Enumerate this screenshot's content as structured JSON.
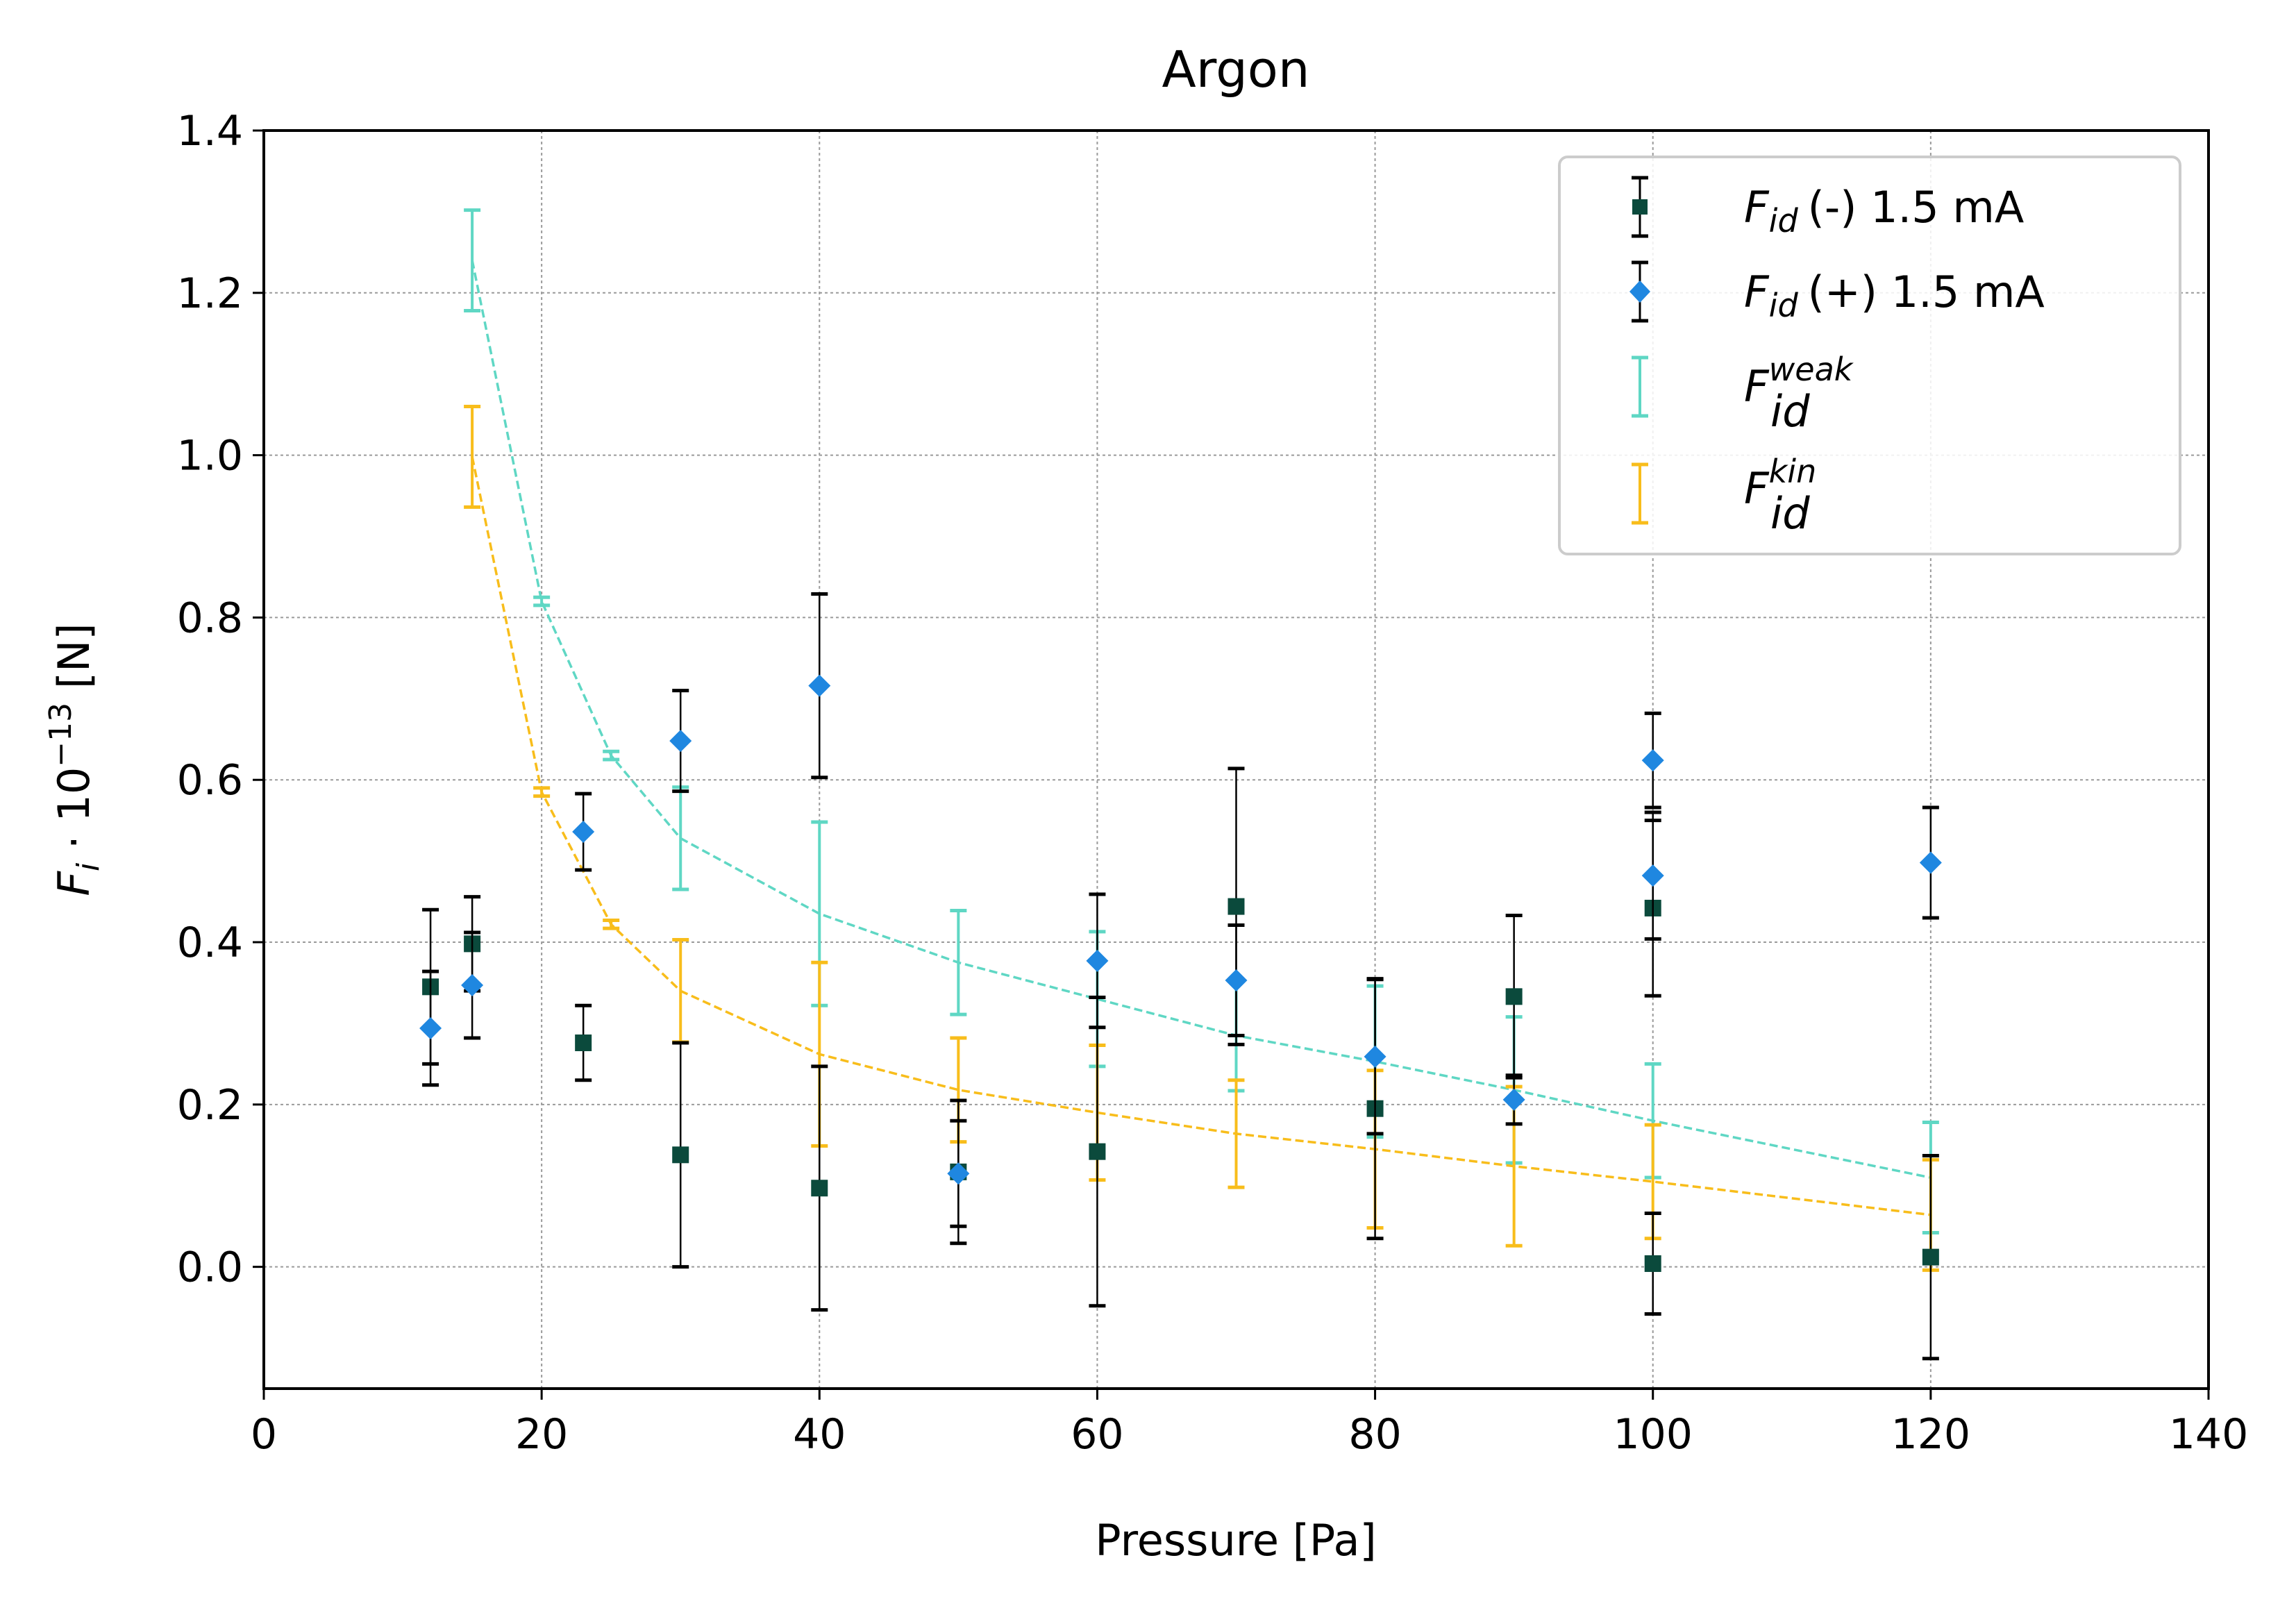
{
  "chart_data": {
    "type": "scatter",
    "title": "Argon",
    "xlabel": "Pressure [Pa]",
    "ylabel": {
      "main": "F",
      "sub": "i",
      "rest": " · 10",
      "sup": "−13",
      "unit": " [N]"
    },
    "xlim": [
      0,
      140
    ],
    "ylim": [
      -0.15,
      1.4
    ],
    "x_ticks": [
      "0",
      "20",
      "40",
      "60",
      "80",
      "100",
      "120",
      "140"
    ],
    "y_ticks": [
      "0.0",
      "0.2",
      "0.4",
      "0.6",
      "0.8",
      "1.0",
      "1.2",
      "1.4"
    ],
    "grid": true,
    "legend_position": "top-right",
    "series": [
      {
        "id": "fid_minus",
        "name": "(-)  1.5 mA",
        "label_main": "F",
        "label_sub": "id",
        "marker": "square",
        "color": "#0b4a3c",
        "errorbar_color": "#000000",
        "points": [
          {
            "x": 12,
            "y": 0.345,
            "err": 0.095
          },
          {
            "x": 15,
            "y": 0.398,
            "err": 0.058
          },
          {
            "x": 23,
            "y": 0.276,
            "err": 0.046
          },
          {
            "x": 30,
            "y": 0.138,
            "err": 0.138
          },
          {
            "x": 40,
            "y": 0.097,
            "err": 0.15
          },
          {
            "x": 50,
            "y": 0.117,
            "err": 0.088
          },
          {
            "x": 60,
            "y": 0.142,
            "err": 0.19
          },
          {
            "x": 70,
            "y": 0.444,
            "err": 0.17
          },
          {
            "x": 80,
            "y": 0.195,
            "err": 0.16
          },
          {
            "x": 90,
            "y": 0.333,
            "err": 0.1
          },
          {
            "x": 100,
            "y": 0.442,
            "err": 0.108
          },
          {
            "x": 100,
            "y": 0.004,
            "err": 0.062
          },
          {
            "x": 120,
            "y": 0.012,
            "err": 0.125
          }
        ]
      },
      {
        "id": "fid_plus",
        "name": "(+) 1.5 mA",
        "label_main": "F",
        "label_sub": "id",
        "marker": "diamond",
        "color": "#1f87e0",
        "errorbar_color": "#000000",
        "points": [
          {
            "x": 12,
            "y": 0.294,
            "err": 0.07
          },
          {
            "x": 15,
            "y": 0.347,
            "err": 0.065
          },
          {
            "x": 23,
            "y": 0.536,
            "err": 0.047
          },
          {
            "x": 30,
            "y": 0.648,
            "err": 0.062
          },
          {
            "x": 40,
            "y": 0.716,
            "err": 0.113
          },
          {
            "x": 50,
            "y": 0.115,
            "err": 0.065
          },
          {
            "x": 60,
            "y": 0.377,
            "err": 0.082
          },
          {
            "x": 70,
            "y": 0.353,
            "err": 0.068
          },
          {
            "x": 80,
            "y": 0.259,
            "err": 0.095
          },
          {
            "x": 90,
            "y": 0.206,
            "err": 0.03
          },
          {
            "x": 100,
            "y": 0.624,
            "err": 0.058
          },
          {
            "x": 100,
            "y": 0.482,
            "err": 0.078
          },
          {
            "x": 120,
            "y": 0.498,
            "err": 0.068
          }
        ]
      },
      {
        "id": "fid_weak",
        "name": "",
        "label_main": "F",
        "label_sub": "id",
        "label_sup": "weak",
        "marker": "none",
        "color": "#5fd7c4",
        "line_style": "dashed",
        "points": [
          {
            "x": 15,
            "y": 1.24,
            "err": 0.062
          },
          {
            "x": 20,
            "y": 0.82,
            "err": 0.005
          },
          {
            "x": 25,
            "y": 0.63,
            "err": 0.005
          },
          {
            "x": 30,
            "y": 0.528,
            "err": 0.063
          },
          {
            "x": 40,
            "y": 0.435,
            "err": 0.113
          },
          {
            "x": 50,
            "y": 0.375,
            "err": 0.064
          },
          {
            "x": 60,
            "y": 0.33,
            "err": 0.083
          },
          {
            "x": 70,
            "y": 0.285,
            "err": 0.068
          },
          {
            "x": 80,
            "y": 0.253,
            "err": 0.093
          },
          {
            "x": 90,
            "y": 0.218,
            "err": 0.09
          },
          {
            "x": 100,
            "y": 0.18,
            "err": 0.07
          },
          {
            "x": 120,
            "y": 0.11,
            "err": 0.068
          }
        ]
      },
      {
        "id": "fid_kin",
        "name": "",
        "label_main": "F",
        "label_sub": "id",
        "label_sup": "kin",
        "marker": "none",
        "color": "#f8bd1b",
        "line_style": "dashed",
        "points": [
          {
            "x": 15,
            "y": 0.998,
            "err": 0.062
          },
          {
            "x": 20,
            "y": 0.585,
            "err": 0.005
          },
          {
            "x": 25,
            "y": 0.422,
            "err": 0.005
          },
          {
            "x": 30,
            "y": 0.34,
            "err": 0.063
          },
          {
            "x": 40,
            "y": 0.262,
            "err": 0.113
          },
          {
            "x": 50,
            "y": 0.218,
            "err": 0.064
          },
          {
            "x": 60,
            "y": 0.19,
            "err": 0.083
          },
          {
            "x": 70,
            "y": 0.164,
            "err": 0.066
          },
          {
            "x": 80,
            "y": 0.145,
            "err": 0.097
          },
          {
            "x": 90,
            "y": 0.124,
            "err": 0.098
          },
          {
            "x": 100,
            "y": 0.105,
            "err": 0.07
          },
          {
            "x": 120,
            "y": 0.064,
            "err": 0.068
          }
        ]
      }
    ]
  }
}
